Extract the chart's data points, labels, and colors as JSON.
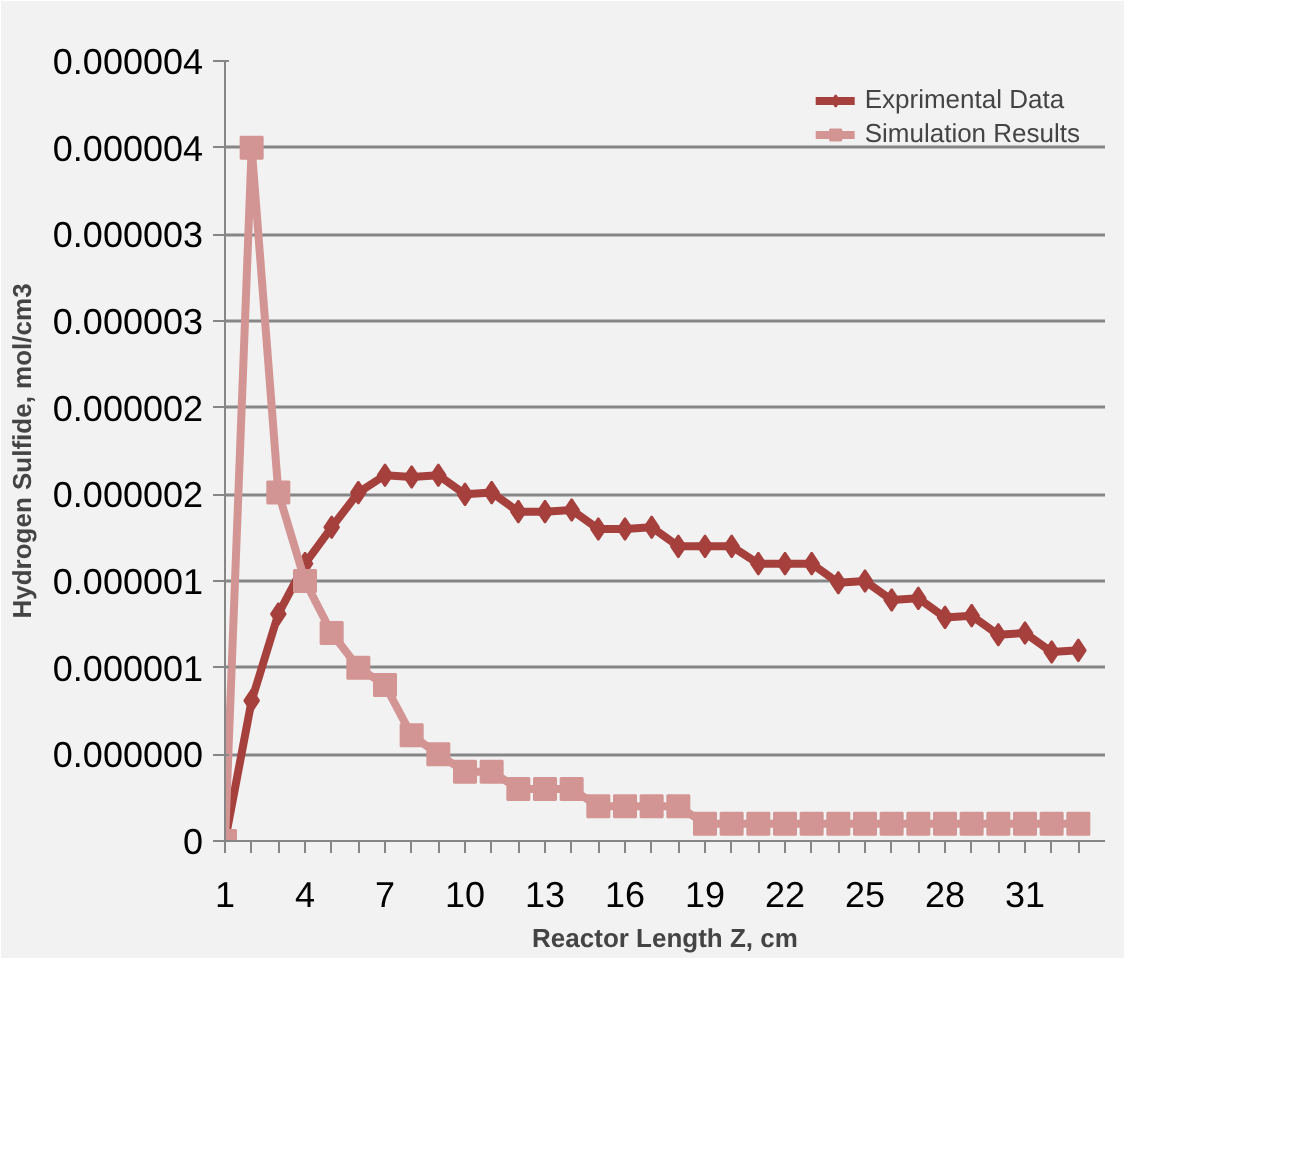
{
  "chart_data": {
    "type": "line",
    "xlabel": "Reactor Length Z, cm",
    "ylabel": "Hydrogen Sulfide, mol/cm3",
    "categories": [
      "1",
      null,
      null,
      "4",
      null,
      null,
      "7",
      null,
      null,
      "10",
      null,
      null,
      "13",
      null,
      null,
      "16",
      null,
      null,
      "19",
      null,
      null,
      "22",
      null,
      null,
      "25",
      null,
      null,
      "28",
      null,
      null,
      "31",
      null,
      null
    ],
    "series": [
      {
        "name": "Exprimental Data",
        "color": "#a5403d",
        "marker": "diamond",
        "values": [
          0,
          8.1e-07,
          1.31e-06,
          1.6e-06,
          1.81e-06,
          2.01e-06,
          2.11e-06,
          2.1e-06,
          2.11e-06,
          2e-06,
          2.01e-06,
          1.9e-06,
          1.9e-06,
          1.91e-06,
          1.8e-06,
          1.8e-06,
          1.81e-06,
          1.7e-06,
          1.7e-06,
          1.7e-06,
          1.6e-06,
          1.6e-06,
          1.6e-06,
          1.49e-06,
          1.5e-06,
          1.39e-06,
          1.4e-06,
          1.29e-06,
          1.3e-06,
          1.19e-06,
          1.2e-06,
          1.09e-06,
          1.1e-06
        ]
      },
      {
        "name": "Simulation Results",
        "color": "#d39593",
        "marker": "square",
        "values": [
          0,
          4e-06,
          2.01e-06,
          1.5e-06,
          1.2e-06,
          1e-06,
          9e-07,
          6.1e-07,
          5e-07,
          4e-07,
          4e-07,
          3e-07,
          3e-07,
          3e-07,
          2e-07,
          2e-07,
          2e-07,
          2e-07,
          1e-07,
          1e-07,
          1e-07,
          1e-07,
          1e-07,
          1e-07,
          1e-07,
          1e-07,
          1e-07,
          1e-07,
          1e-07,
          1e-07,
          1e-07,
          1e-07,
          1e-07
        ]
      }
    ],
    "ylim": [
      0,
      4.5e-06
    ],
    "yticks": [
      0,
      {
        "value": 5e-07,
        "label": "0.000000"
      },
      {
        "value": 1e-06,
        "label": "0.000001"
      },
      {
        "value": 1.5e-06,
        "label": "0.000001"
      },
      {
        "value": 2e-06,
        "label": "0.000002"
      },
      {
        "value": 2.5e-06,
        "label": "0.000002"
      },
      {
        "value": 3e-06,
        "label": "0.000003"
      },
      {
        "value": 3.5e-06,
        "label": "0.000003"
      },
      {
        "value": 4e-06,
        "label": "0.000004"
      },
      {
        "value": 4.5e-06,
        "label": "0.000004"
      }
    ],
    "grid": "y",
    "legend": "top right",
    "line_style": "solid"
  }
}
